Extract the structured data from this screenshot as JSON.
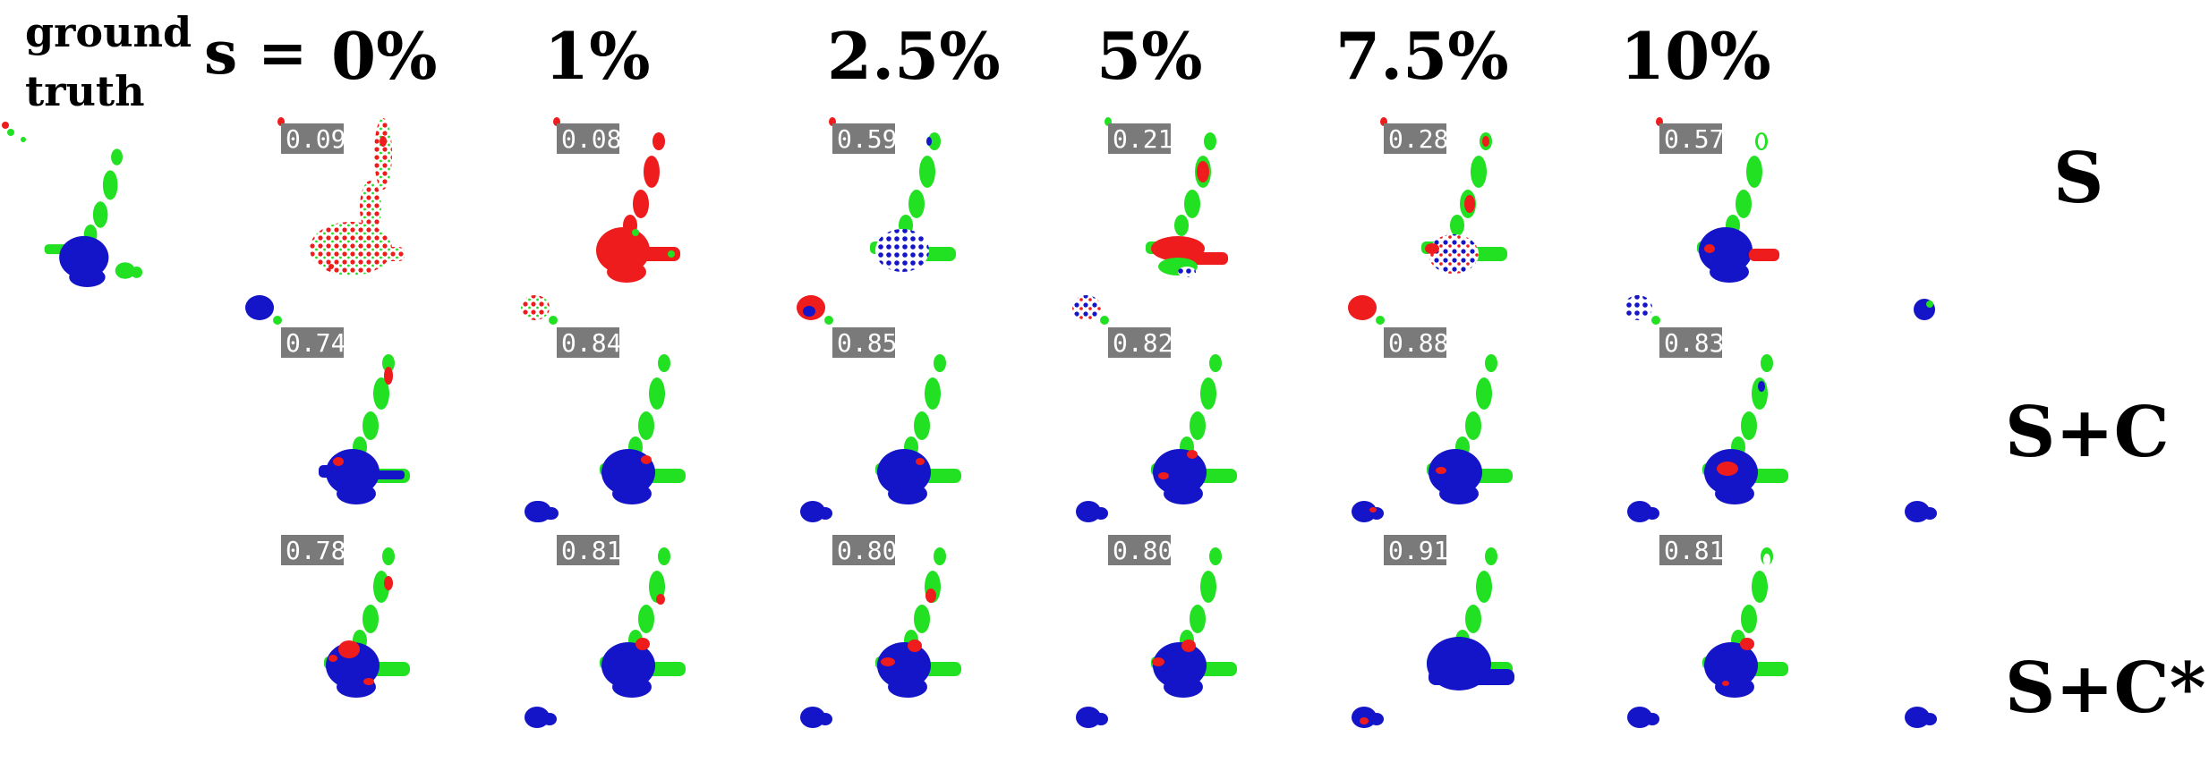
{
  "header": {
    "ground_truth_line1": "ground",
    "ground_truth_line2": "truth",
    "s_prefix": "s =",
    "columns": [
      "0%",
      "1%",
      "2.5%",
      "5%",
      "7.5%",
      "10%"
    ]
  },
  "rows": [
    {
      "label": "S",
      "scores": [
        "0.09",
        "0.08",
        "0.59",
        "0.21",
        "0.28",
        "0.57"
      ]
    },
    {
      "label": "S+C",
      "scores": [
        "0.74",
        "0.84",
        "0.85",
        "0.82",
        "0.88",
        "0.83"
      ]
    },
    {
      "label": "S+C*",
      "scores": [
        "0.78",
        "0.81",
        "0.80",
        "0.80",
        "0.91",
        "0.81"
      ]
    }
  ],
  "colors": {
    "red": "#ee1c1c",
    "green": "#22e022",
    "blue": "#1414c8",
    "badge": "#7a7a7a"
  }
}
